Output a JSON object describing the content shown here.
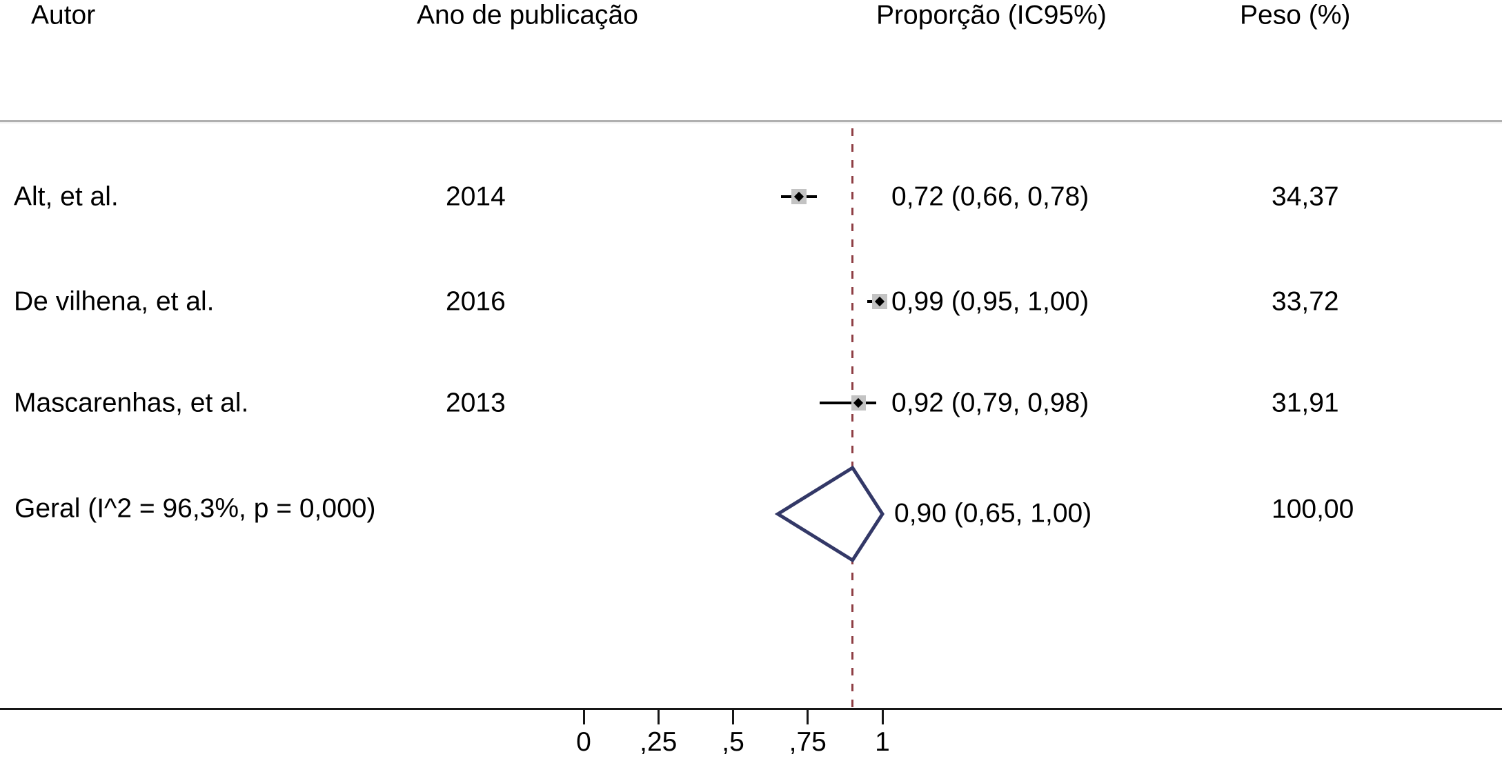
{
  "header": {
    "col_author": "Autor",
    "col_year": "Ano de publicação",
    "col_effect": "Proporção (IC95%)",
    "col_weight": "Peso (%)"
  },
  "chart_data": {
    "type": "forest",
    "title": "",
    "columns": [
      "Autor",
      "Ano de publicação",
      "Proporção (IC95%)",
      "Peso (%)"
    ],
    "x_axis": {
      "range": [
        0,
        1
      ],
      "tick_values": [
        0,
        0.25,
        0.5,
        0.75,
        1
      ],
      "tick_labels": [
        "0",
        ",25",
        ",5",
        ",75",
        "1"
      ],
      "grid": false
    },
    "reference_line_value": 0.9,
    "studies": [
      {
        "author": "Alt, et al.",
        "year": "2014",
        "estimate": 0.72,
        "ci_low": 0.66,
        "ci_high": 0.78,
        "effect_label": "0,72 (0,66, 0,78)",
        "weight_pct": 34.37,
        "weight_label": "34,37"
      },
      {
        "author": "De vilhena, et al.",
        "year": "2016",
        "estimate": 0.99,
        "ci_low": 0.95,
        "ci_high": 1.0,
        "effect_label": "0,99 (0,95, 1,00)",
        "weight_pct": 33.72,
        "weight_label": "33,72"
      },
      {
        "author": "Mascarenhas, et al.",
        "year": "2013",
        "estimate": 0.92,
        "ci_low": 0.79,
        "ci_high": 0.98,
        "effect_label": "0,92 (0,79, 0,98)",
        "weight_pct": 31.91,
        "weight_label": "31,91"
      }
    ],
    "overall": {
      "label": "Geral (I^2 = 96,3%, p = 0,000)",
      "i_squared": "96,3%",
      "p_value": "0,000",
      "estimate": 0.9,
      "ci_low": 0.65,
      "ci_high": 1.0,
      "effect_label": "0,90 (0,65, 1,00)",
      "weight_pct": 100.0,
      "weight_label": "100,00"
    },
    "colors": {
      "text": "#000000",
      "reference_line": "#8e3e44",
      "ci_line": "#000000",
      "study_square": "#c3c3c3",
      "study_point": "#000000",
      "overall_diamond_stroke": "#333867",
      "overall_diamond_fill": "#ffffff",
      "separator_line": "#b0b0b0",
      "axis_line": "#161616"
    }
  }
}
